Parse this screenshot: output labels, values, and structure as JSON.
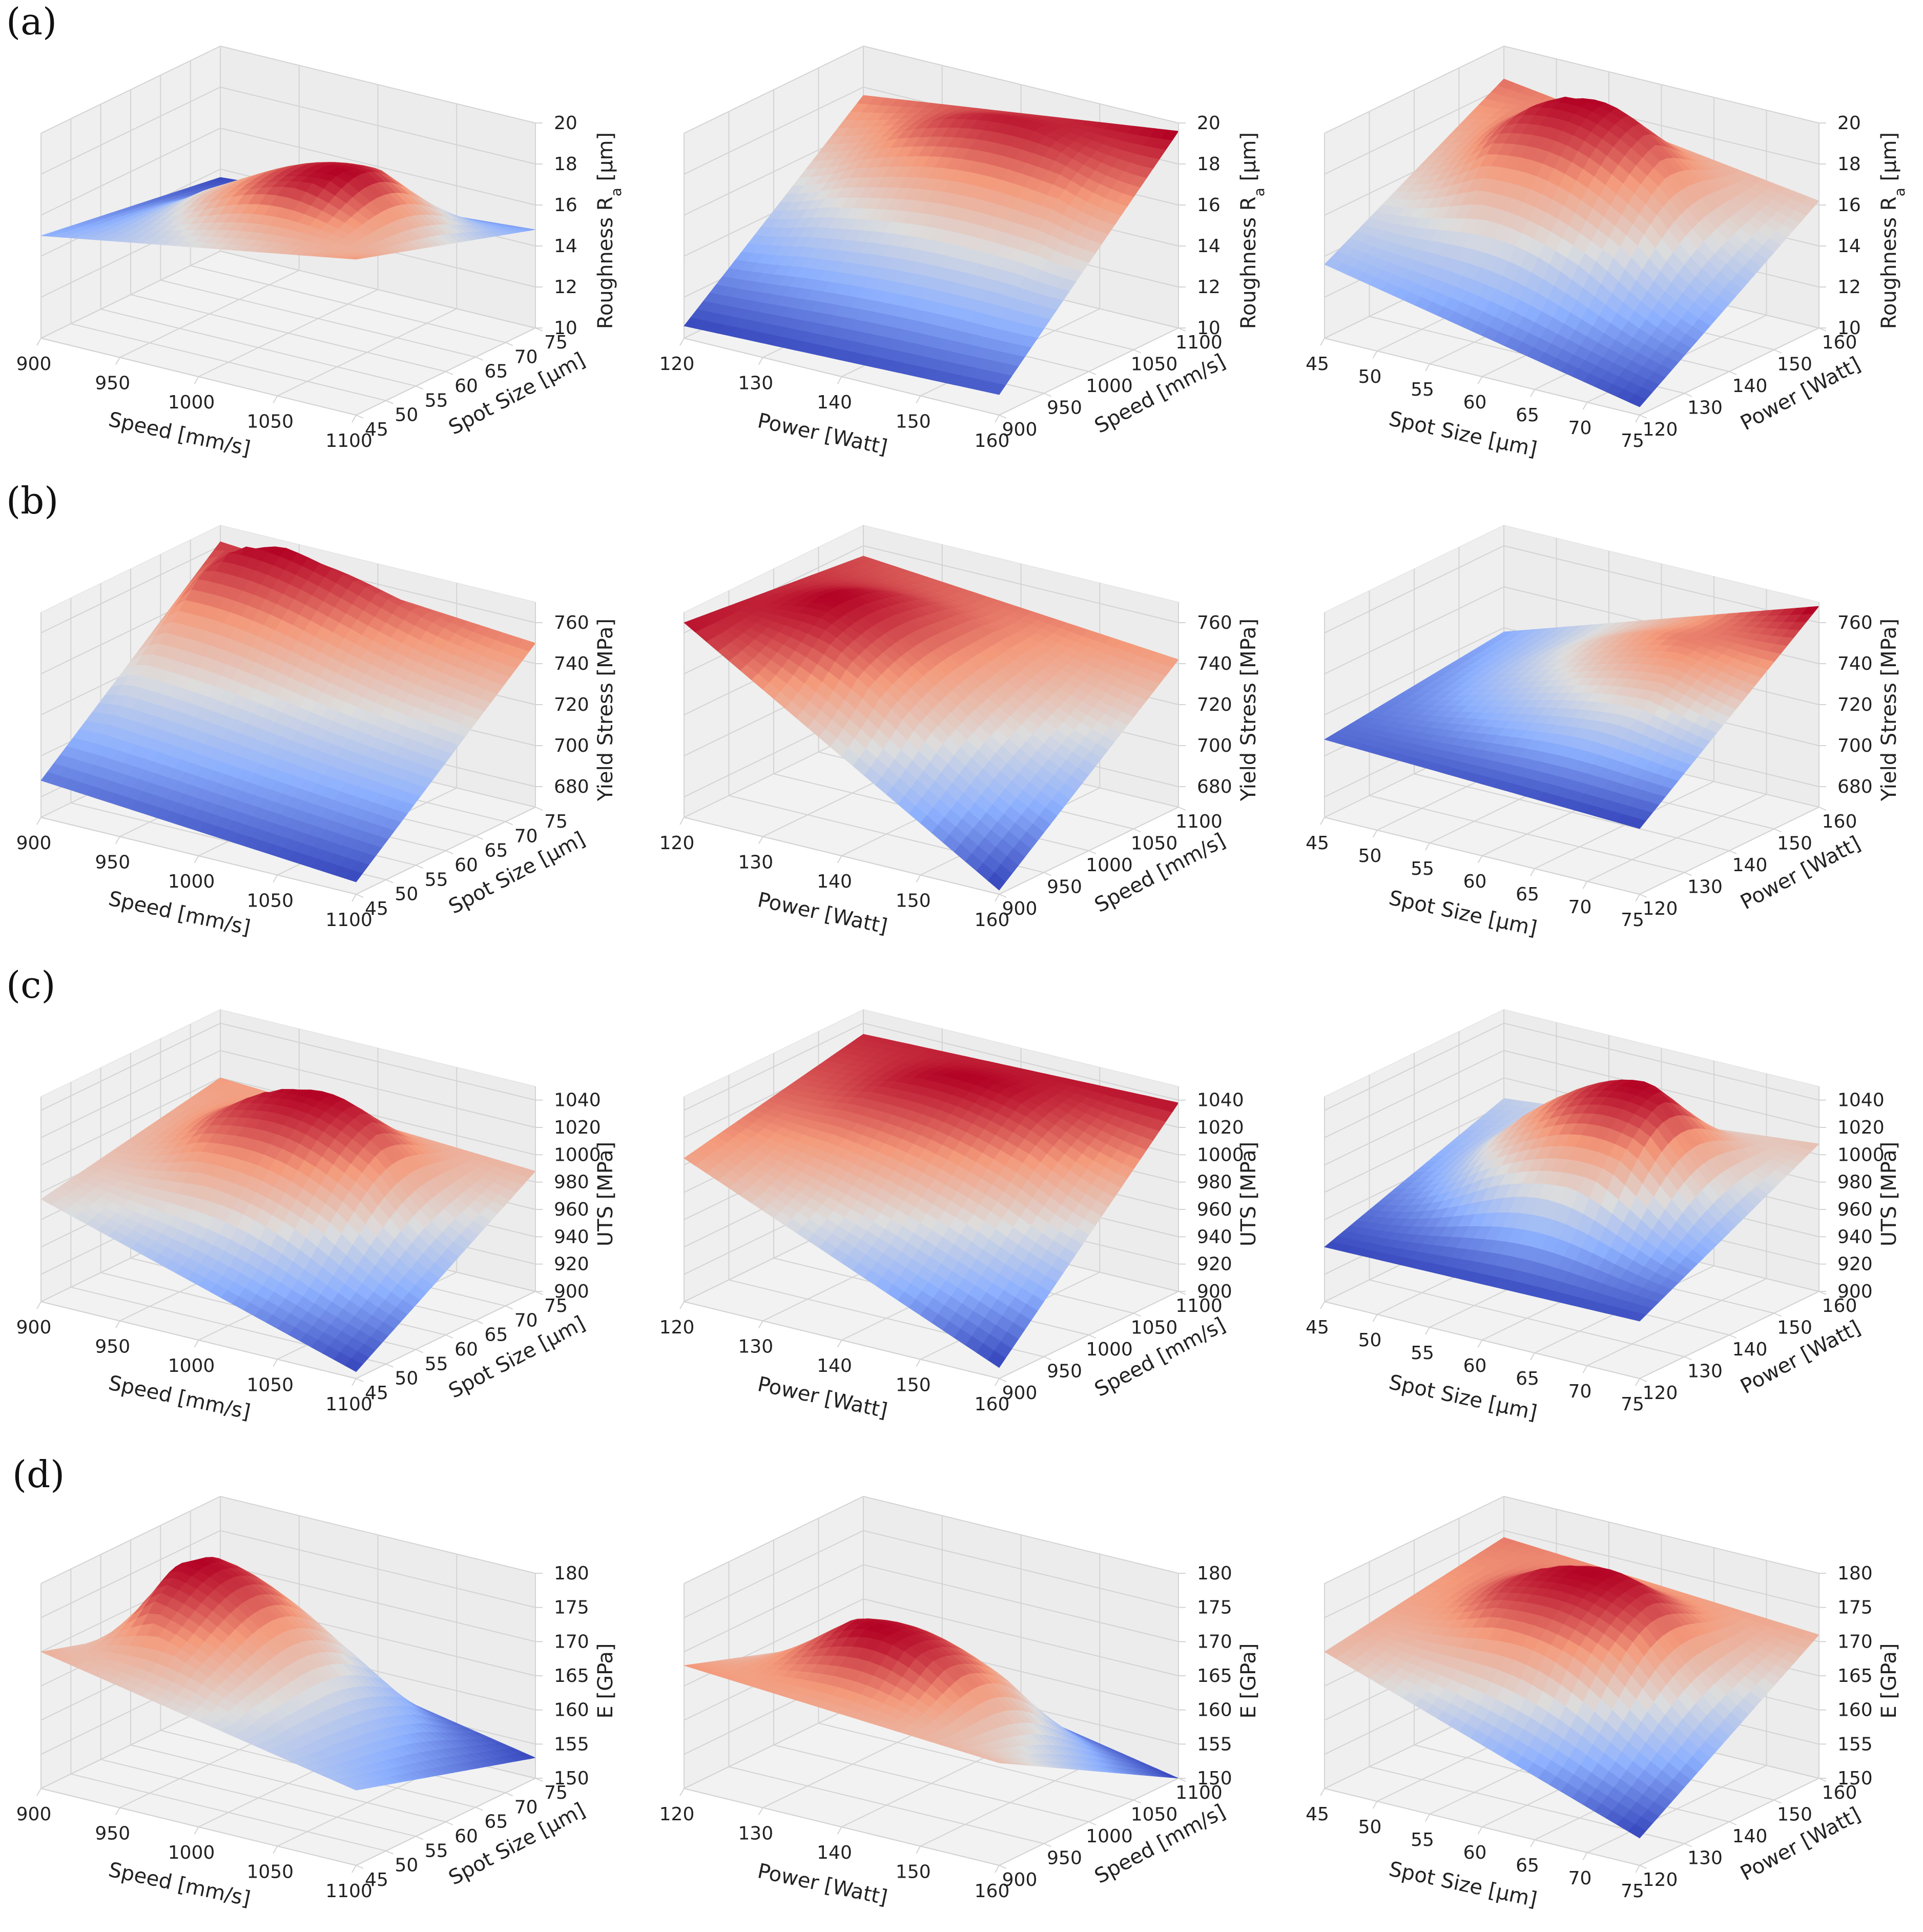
{
  "row_labels": [
    "(a)",
    "(b)",
    "(c)",
    "(d)"
  ],
  "chart_data": [
    {
      "type": "surface",
      "row": "(a)",
      "col": 1,
      "x_var": "speed",
      "y_var": "spot",
      "zlabel": "Roughness Ra [µm]",
      "zlabel_sub": true,
      "zlim": [
        10,
        20
      ],
      "zticks": [
        "10",
        "12",
        "14",
        "16",
        "18",
        "20"
      ],
      "corners": [
        15.0,
        17.6,
        14.8,
        13.6
      ],
      "peak": {
        "u": 0.65,
        "v": 0.5,
        "z": 18.8
      },
      "colors": {
        "low": "#3b4cc0",
        "high": "#b40426"
      }
    },
    {
      "type": "surface",
      "row": "(a)",
      "col": 2,
      "x_var": "power",
      "y_var": "speed",
      "zlabel": "Roughness Ra [µm]",
      "zlabel_sub": true,
      "zlim": [
        10,
        20
      ],
      "zticks": [
        "10",
        "12",
        "14",
        "16",
        "18",
        "20"
      ],
      "corners": [
        10.6,
        11.0,
        19.6,
        17.6
      ],
      "peak": {
        "u": 0.5,
        "v": 0.8,
        "z": 18.8
      },
      "colors": {
        "low": "#3b4cc0",
        "high": "#b40426"
      }
    },
    {
      "type": "surface",
      "row": "(a)",
      "col": 3,
      "x_var": "spot",
      "y_var": "power",
      "zlabel": "Roughness Ra [µm]",
      "zlabel_sub": true,
      "zlim": [
        10,
        20
      ],
      "zticks": [
        "10",
        "12",
        "14",
        "16",
        "18",
        "20"
      ],
      "corners": [
        13.6,
        10.4,
        16.2,
        18.4
      ],
      "peak": {
        "u": 0.45,
        "v": 0.65,
        "z": 19.8
      },
      "colors": {
        "low": "#3b4cc0",
        "high": "#b40426"
      }
    },
    {
      "type": "surface",
      "row": "(b)",
      "col": 1,
      "x_var": "speed",
      "y_var": "spot",
      "zlabel": "Yield Stress [MPa]",
      "zlabel_sub": false,
      "zlim": [
        670,
        770
      ],
      "zticks": [
        "680",
        "700",
        "720",
        "740",
        "760"
      ],
      "corners": [
        688,
        676,
        750,
        762
      ],
      "peak": {
        "u": 0.2,
        "v": 0.9,
        "z": 770
      },
      "colors": {
        "low": "#3b4cc0",
        "high": "#b40426"
      }
    },
    {
      "type": "surface",
      "row": "(b)",
      "col": 2,
      "x_var": "power",
      "y_var": "speed",
      "zlabel": "Yield Stress [MPa]",
      "zlabel_sub": false,
      "zlim": [
        670,
        770
      ],
      "zticks": [
        "680",
        "700",
        "720",
        "740",
        "760"
      ],
      "corners": [
        765,
        672,
        742,
        755
      ],
      "peak": {
        "u": 0.3,
        "v": 0.4,
        "z": 762
      },
      "colors": {
        "low": "#3b4cc0",
        "high": "#b40426"
      }
    },
    {
      "type": "surface",
      "row": "(b)",
      "col": 3,
      "x_var": "spot",
      "y_var": "power",
      "zlabel": "Yield Stress [MPa]",
      "zlabel_sub": false,
      "zlim": [
        670,
        770
      ],
      "zticks": [
        "680",
        "700",
        "720",
        "740",
        "760"
      ],
      "corners": [
        708,
        702,
        768,
        718
      ],
      "peak": {
        "u": 0.7,
        "v": 0.6,
        "z": 748
      },
      "colors": {
        "low": "#3b4cc0",
        "high": "#b40426"
      }
    },
    {
      "type": "surface",
      "row": "(c)",
      "col": 1,
      "x_var": "speed",
      "y_var": "spot",
      "zlabel": "UTS [MPa]",
      "zlabel_sub": false,
      "zlim": [
        900,
        1050
      ],
      "zticks": [
        "900",
        "920",
        "940",
        "960",
        "980",
        "1000",
        "1020",
        "1040"
      ],
      "corners": [
        975,
        905,
        988,
        1000
      ],
      "peak": {
        "u": 0.5,
        "v": 0.65,
        "z": 1030
      },
      "colors": {
        "low": "#3b4cc0",
        "high": "#b40426"
      }
    },
    {
      "type": "surface",
      "row": "(c)",
      "col": 2,
      "x_var": "power",
      "y_var": "speed",
      "zlabel": "UTS [MPa]",
      "zlabel_sub": false,
      "zlim": [
        900,
        1050
      ],
      "zticks": [
        "900",
        "920",
        "940",
        "960",
        "980",
        "1000",
        "1020",
        "1040"
      ],
      "corners": [
        1005,
        908,
        1038,
        1032
      ],
      "peak": {
        "u": 0.5,
        "v": 0.7,
        "z": 1035
      },
      "colors": {
        "low": "#3b4cc0",
        "high": "#b40426"
      }
    },
    {
      "type": "surface",
      "row": "(c)",
      "col": 3,
      "x_var": "spot",
      "y_var": "power",
      "zlabel": "UTS [MPa]",
      "zlabel_sub": false,
      "zlim": [
        900,
        1050
      ],
      "zticks": [
        "900",
        "920",
        "940",
        "960",
        "980",
        "1000",
        "1020",
        "1040"
      ],
      "corners": [
        940,
        942,
        1008,
        985
      ],
      "peak": {
        "u": 0.6,
        "v": 0.6,
        "z": 1048
      },
      "colors": {
        "low": "#3b4cc0",
        "high": "#b40426"
      }
    },
    {
      "type": "surface",
      "row": "(d)",
      "col": 1,
      "x_var": "speed",
      "y_var": "spot",
      "zlabel": "E [GPa]",
      "zlabel_sub": false,
      "zlim": [
        150,
        180
      ],
      "zticks": [
        "150",
        "155",
        "160",
        "165",
        "170",
        "175",
        "180"
      ],
      "corners": [
        170,
        161,
        153,
        162
      ],
      "peak": {
        "u": 0.2,
        "v": 0.6,
        "z": 178
      },
      "colors": {
        "low": "#3b4cc0",
        "high": "#b40426"
      }
    },
    {
      "type": "surface",
      "row": "(d)",
      "col": 2,
      "x_var": "power",
      "y_var": "speed",
      "zlabel": "E [GPa]",
      "zlabel_sub": false,
      "zlim": [
        150,
        180
      ],
      "zticks": [
        "150",
        "155",
        "160",
        "165",
        "170",
        "175",
        "180"
      ],
      "corners": [
        168,
        165,
        150,
        159
      ],
      "peak": {
        "u": 0.45,
        "v": 0.45,
        "z": 173
      },
      "colors": {
        "low": "#3b4cc0",
        "high": "#b40426"
      }
    },
    {
      "type": "surface",
      "row": "(d)",
      "col": 3,
      "x_var": "spot",
      "y_var": "power",
      "zlabel": "E [GPa]",
      "zlabel_sub": false,
      "zlim": [
        150,
        180
      ],
      "zticks": [
        "150",
        "155",
        "160",
        "165",
        "170",
        "175",
        "180"
      ],
      "corners": [
        170,
        154,
        171,
        174
      ],
      "peak": {
        "u": 0.55,
        "v": 0.55,
        "z": 178
      },
      "colors": {
        "low": "#3b4cc0",
        "high": "#b40426"
      }
    }
  ],
  "axes": {
    "speed": {
      "label": "Speed [mm/s]",
      "ticks": [
        "900",
        "950",
        "1000",
        "1050",
        "1100"
      ],
      "range": [
        900,
        1100
      ]
    },
    "power": {
      "label": "Power [Watt]",
      "ticks": [
        "120",
        "130",
        "140",
        "150",
        "160"
      ],
      "range": [
        120,
        160
      ]
    },
    "spot": {
      "label": "Spot Size [µm]",
      "ticks": [
        "45",
        "50",
        "55",
        "60",
        "65",
        "70",
        "75"
      ],
      "range": [
        45,
        75
      ]
    }
  }
}
